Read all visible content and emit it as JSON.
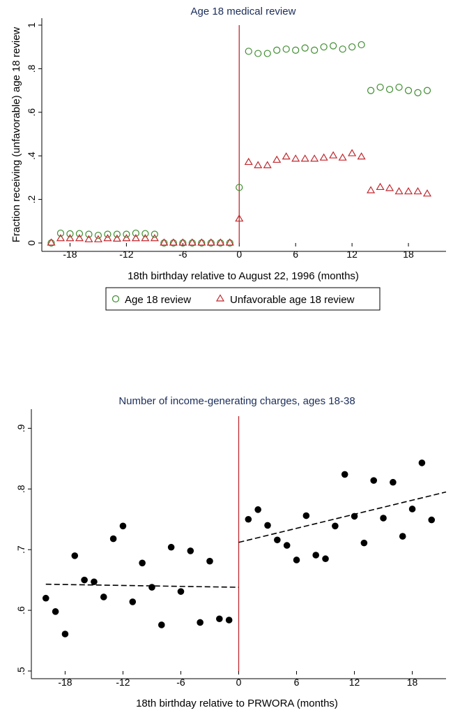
{
  "chart_data": [
    {
      "type": "scatter",
      "title": "Age 18 medical review",
      "xlabel": "18th birthday relative to August 22, 1996 (months)",
      "ylabel": "Fraction receiving (unfavorable) age 18 review",
      "xlim": [
        -21,
        22
      ],
      "ylim": [
        0,
        1
      ],
      "x_ticks": [
        -18,
        -12,
        -6,
        0,
        6,
        12,
        18
      ],
      "x_tick_labels": [
        "-18",
        "-12",
        "-6",
        "0",
        "6",
        "12",
        "18"
      ],
      "y_ticks": [
        0,
        0.2,
        0.4,
        0.6,
        0.8,
        1
      ],
      "y_tick_labels": [
        "0",
        ".2",
        ".4",
        ".6",
        ".8",
        "1"
      ],
      "cutoff_x": 0,
      "cutoff_color": "#c0272d",
      "legend_position": "bottom",
      "series": [
        {
          "name": "Age 18 review",
          "marker": "circle",
          "color": "#3d8c2e",
          "x": [
            -20,
            -19,
            -18,
            -17,
            -16,
            -15,
            -14,
            -13,
            -12,
            -11,
            -10,
            -9,
            -8,
            -7,
            -6,
            -5,
            -4,
            -3,
            -2,
            -1,
            0,
            1,
            2,
            3,
            4,
            5,
            6,
            7,
            8,
            9,
            10,
            11,
            12,
            13,
            14,
            15,
            16,
            17,
            18,
            19,
            20
          ],
          "y": [
            0,
            0.045,
            0.042,
            0.043,
            0.04,
            0.035,
            0.04,
            0.04,
            0.04,
            0.045,
            0.043,
            0.04,
            0,
            0,
            0,
            0,
            0,
            0,
            0,
            0,
            0.255,
            0.88,
            0.87,
            0.87,
            0.885,
            0.89,
            0.885,
            0.895,
            0.885,
            0.9,
            0.905,
            0.89,
            0.9,
            0.91,
            0.7,
            0.715,
            0.705,
            0.715,
            0.7,
            0.69,
            0.7
          ]
        },
        {
          "name": "Unfavorable age 18 review",
          "marker": "triangle",
          "color": "#c0272d",
          "x": [
            -20,
            -19,
            -18,
            -17,
            -16,
            -15,
            -14,
            -13,
            -12,
            -11,
            -10,
            -9,
            -8,
            -7,
            -6,
            -5,
            -4,
            -3,
            -2,
            -1,
            0,
            1,
            2,
            3,
            4,
            5,
            6,
            7,
            8,
            9,
            10,
            11,
            12,
            13,
            14,
            15,
            16,
            17,
            18,
            19,
            20
          ],
          "y": [
            0,
            0.02,
            0.02,
            0.02,
            0.015,
            0.015,
            0.02,
            0.018,
            0.02,
            0.02,
            0.02,
            0.02,
            0,
            0,
            0,
            0,
            0,
            0,
            0,
            0,
            0.11,
            0.37,
            0.355,
            0.355,
            0.38,
            0.395,
            0.385,
            0.385,
            0.385,
            0.39,
            0.4,
            0.39,
            0.41,
            0.395,
            0.24,
            0.255,
            0.25,
            0.235,
            0.235,
            0.235,
            0.225
          ]
        }
      ]
    },
    {
      "type": "scatter",
      "title": "Number of income-generating charges, ages 18-38",
      "xlabel": "18th birthday relative to PRWORA (months)",
      "ylabel": "",
      "xlim": [
        -21.5,
        21.5
      ],
      "ylim": [
        0.5,
        0.92
      ],
      "x_ticks": [
        -18,
        -12,
        -6,
        0,
        6,
        12,
        18
      ],
      "x_tick_labels": [
        "-18",
        "-12",
        "-6",
        "0",
        "6",
        "12",
        "18"
      ],
      "y_ticks": [
        0.5,
        0.6,
        0.7,
        0.8,
        0.9
      ],
      "y_tick_labels": [
        ".5",
        ".6",
        ".7",
        ".8",
        ".9"
      ],
      "cutoff_x": 0,
      "cutoff_color": "#c0272d",
      "series": [
        {
          "marker": "filled-circle",
          "color": "#000000",
          "x": [
            -20,
            -19,
            -18,
            -17,
            -16,
            -15,
            -14,
            -13,
            -12,
            -11,
            -10,
            -9,
            -8,
            -7,
            -6,
            -5,
            -4,
            -3,
            -2,
            -1,
            1,
            2,
            3,
            4,
            5,
            6,
            7,
            8,
            9,
            10,
            11,
            12,
            13,
            14,
            15,
            16,
            17,
            18,
            19,
            20
          ],
          "y": [
            0.62,
            0.598,
            0.561,
            0.69,
            0.65,
            0.647,
            0.622,
            0.718,
            0.739,
            0.614,
            0.678,
            0.638,
            0.576,
            0.704,
            0.631,
            0.698,
            0.58,
            0.681,
            0.586,
            0.584,
            0.75,
            0.766,
            0.74,
            0.716,
            0.707,
            0.683,
            0.756,
            0.691,
            0.685,
            0.739,
            0.824,
            0.755,
            0.711,
            0.814,
            0.752,
            0.811,
            0.722,
            0.767,
            0.843,
            0.749
          ]
        }
      ],
      "fit_lines": [
        {
          "style": "dashed",
          "x": [
            -20,
            0
          ],
          "y": [
            0.643,
            0.638
          ]
        },
        {
          "style": "dashed",
          "x": [
            0,
            21.5
          ],
          "y": [
            0.712,
            0.795
          ]
        }
      ]
    }
  ]
}
